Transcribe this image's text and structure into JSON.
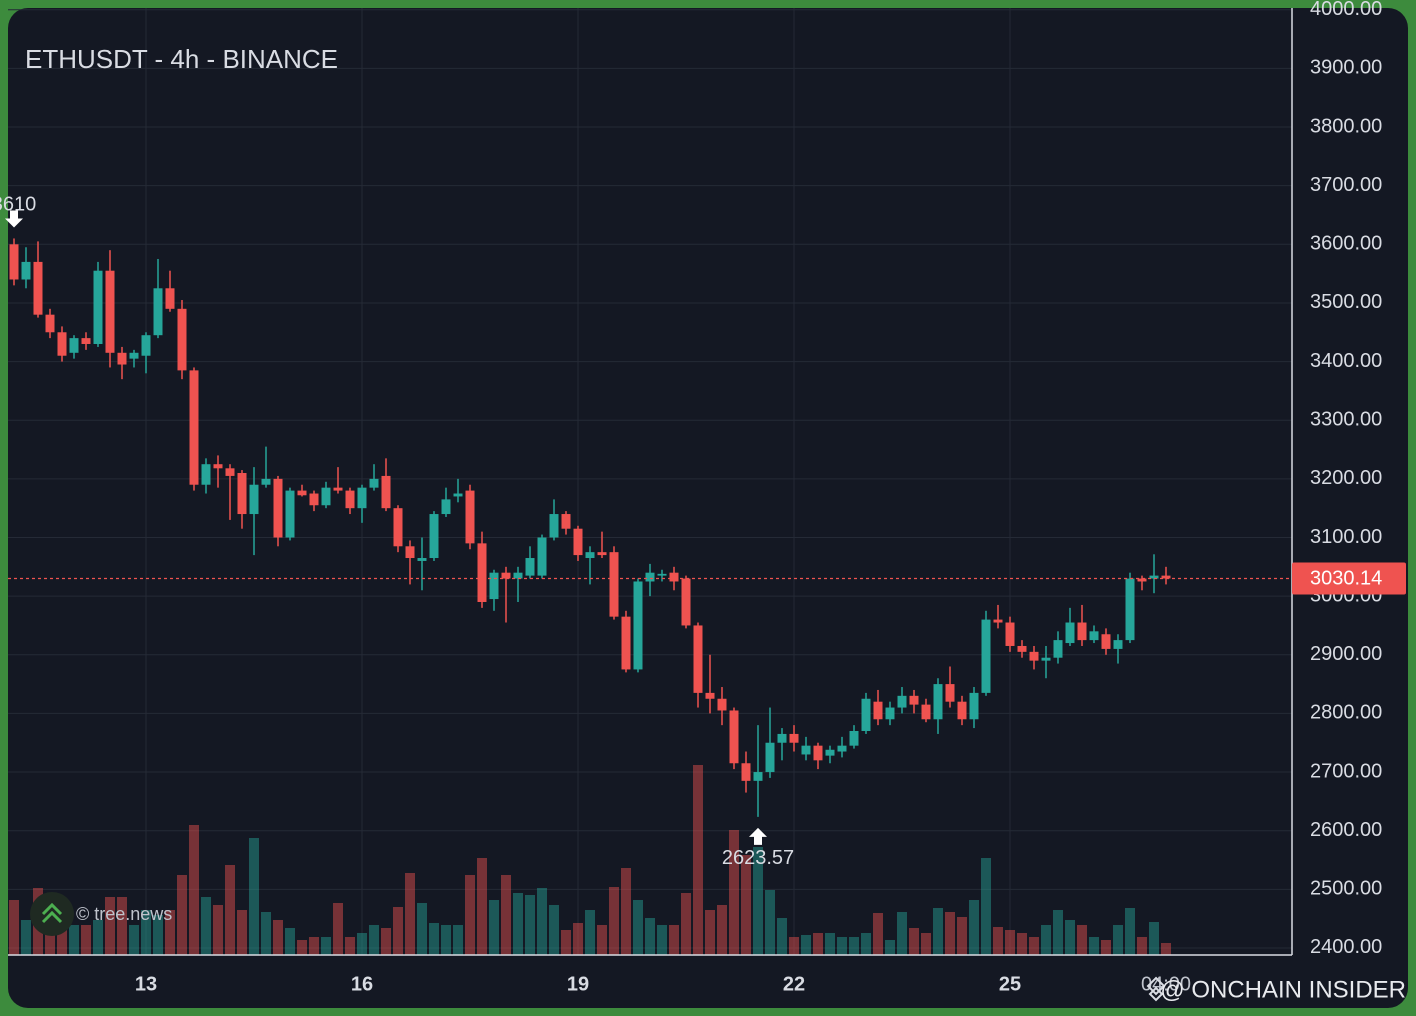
{
  "chart_data": {
    "type": "candlestick",
    "title": "ETHUSDT - 4h - BINANCE",
    "up_color": "#26a69a",
    "down_color": "#ef5350",
    "x": [
      11.1667,
      11.3333,
      11.5,
      11.6667,
      11.8333,
      12,
      12.1667,
      12.3333,
      12.5,
      12.6667,
      12.8333,
      13,
      13.1667,
      13.3333,
      13.5,
      13.6667,
      13.8333,
      14,
      14.1667,
      14.3333,
      14.5,
      14.6667,
      14.8333,
      15,
      15.1667,
      15.3333,
      15.5,
      15.6667,
      15.8333,
      16,
      16.1667,
      16.3333,
      16.5,
      16.6667,
      16.8333,
      17,
      17.1667,
      17.3333,
      17.5,
      17.6667,
      17.8333,
      18,
      18.1667,
      18.3333,
      18.5,
      18.6667,
      18.8333,
      19,
      19.1667,
      19.3333,
      19.5,
      19.6667,
      19.8333,
      20,
      20.1667,
      20.3333,
      20.5,
      20.6667,
      20.8333,
      21,
      21.1667,
      21.3333,
      21.5,
      21.6667,
      21.8333,
      22,
      22.1667,
      22.3333,
      22.5,
      22.6667,
      22.8333,
      23,
      23.1667,
      23.3333,
      23.5,
      23.6667,
      23.8333,
      24,
      24.1667,
      24.3333,
      24.5,
      24.6667,
      24.8333,
      25,
      25.1667,
      25.3333,
      25.5,
      25.6667,
      25.8333,
      26,
      26.1667,
      26.3333,
      26.5,
      26.6667,
      26.8333,
      27,
      27.1667
    ],
    "open": [
      3600,
      3540,
      3570,
      3480,
      3450,
      3415,
      3440,
      3430,
      3555,
      3415,
      3405,
      3410,
      3445,
      3525,
      3490,
      3385,
      3190,
      3225,
      3218,
      3210,
      3140,
      3190,
      3200,
      3100,
      3180,
      3175,
      3155,
      3185,
      3180,
      3150,
      3185,
      3205,
      3150,
      3085,
      3060,
      3065,
      3140,
      3170,
      3180,
      3090,
      2995,
      3040,
      3030,
      3035,
      3035,
      3100,
      3140,
      3115,
      3065,
      3075,
      3075,
      2965,
      2875,
      3025,
      3035,
      3040,
      3030,
      2950,
      2835,
      2825,
      2805,
      2715,
      2685,
      2700,
      2750,
      2765,
      2730,
      2745,
      2728,
      2735,
      2745,
      2770,
      2820,
      2790,
      2810,
      2830,
      2815,
      2790,
      2850,
      2820,
      2790,
      2835,
      2960,
      2955,
      2915,
      2905,
      2890,
      2895,
      2920,
      2955,
      2925,
      2935,
      2910,
      2925,
      3030,
      3030,
      3035
    ],
    "high": [
      3610,
      3595,
      3605,
      3490,
      3460,
      3445,
      3450,
      3570,
      3590,
      3425,
      3420,
      3450,
      3575,
      3555,
      3505,
      3390,
      3235,
      3240,
      3225,
      3215,
      3220,
      3255,
      3205,
      3185,
      3190,
      3180,
      3195,
      3220,
      3185,
      3190,
      3225,
      3235,
      3155,
      3095,
      3100,
      3145,
      3185,
      3200,
      3190,
      3110,
      3045,
      3050,
      3050,
      3085,
      3105,
      3165,
      3145,
      3120,
      3085,
      3110,
      3085,
      2975,
      3030,
      3055,
      3045,
      3050,
      3035,
      2955,
      2900,
      2845,
      2810,
      2735,
      2780,
      2810,
      2775,
      2780,
      2760,
      2750,
      2745,
      2760,
      2780,
      2835,
      2840,
      2820,
      2845,
      2840,
      2825,
      2860,
      2880,
      2830,
      2845,
      2975,
      2985,
      2965,
      2925,
      2915,
      2915,
      2940,
      2980,
      2985,
      2950,
      2945,
      2935,
      3040,
      3035,
      3071.37,
      3050
    ],
    "low": [
      3530,
      3525,
      3475,
      3440,
      3400,
      3405,
      3420,
      3425,
      3390,
      3370,
      3390,
      3380,
      3440,
      3485,
      3370,
      3180,
      3175,
      3185,
      3130,
      3115,
      3070,
      3185,
      3085,
      3095,
      3170,
      3145,
      3150,
      3175,
      3140,
      3125,
      3180,
      3145,
      3075,
      3020,
      3010,
      3060,
      3135,
      3160,
      3080,
      2980,
      2975,
      2955,
      2990,
      3030,
      3030,
      3095,
      3105,
      3060,
      3020,
      3065,
      2960,
      2870,
      2870,
      3000,
      3025,
      3010,
      2945,
      2810,
      2800,
      2780,
      2705,
      2665,
      2623.57,
      2690,
      2720,
      2735,
      2720,
      2705,
      2715,
      2725,
      2740,
      2765,
      2780,
      2780,
      2800,
      2800,
      2785,
      2765,
      2810,
      2780,
      2775,
      2830,
      2945,
      2905,
      2895,
      2875,
      2860,
      2885,
      2915,
      2915,
      2920,
      2900,
      2885,
      2920,
      3010,
      3005,
      3020
    ],
    "close": [
      3540,
      3570,
      3480,
      3450,
      3410,
      3440,
      3430,
      3555,
      3415,
      3395,
      3415,
      3445,
      3525,
      3490,
      3385,
      3190,
      3225,
      3218,
      3205,
      3140,
      3190,
      3200,
      3100,
      3180,
      3172,
      3155,
      3185,
      3180,
      3150,
      3185,
      3200,
      3150,
      3085,
      3065,
      3065,
      3140,
      3165,
      3175,
      3090,
      2990,
      3040,
      3030,
      3040,
      3065,
      3100,
      3140,
      3115,
      3070,
      3075,
      3070,
      2965,
      2875,
      3025,
      3040,
      3038,
      3025,
      2950,
      2835,
      2825,
      2805,
      2715,
      2685,
      2700,
      2750,
      2765,
      2750,
      2745,
      2720,
      2738,
      2745,
      2770,
      2825,
      2790,
      2810,
      2830,
      2815,
      2790,
      2850,
      2820,
      2790,
      2835,
      2960,
      2955,
      2915,
      2905,
      2890,
      2895,
      2925,
      2955,
      2925,
      2940,
      2910,
      2925,
      3030,
      3025,
      3035,
      3030.14
    ],
    "volume": [
      55,
      35,
      67,
      45,
      35,
      30,
      30,
      35,
      58,
      58,
      30,
      45,
      40,
      45,
      80,
      130,
      58,
      50,
      90,
      45,
      117,
      43,
      35,
      27,
      15,
      18,
      18,
      52,
      18,
      22,
      30,
      27,
      48,
      82,
      52,
      32,
      30,
      30,
      80,
      97,
      55,
      80,
      62,
      60,
      67,
      50,
      25,
      32,
      45,
      30,
      68,
      87,
      55,
      37,
      30,
      30,
      62,
      190,
      45,
      50,
      125,
      100,
      108,
      65,
      37,
      18,
      20,
      22,
      22,
      18,
      18,
      22,
      42,
      15,
      43,
      27,
      22,
      47,
      43,
      38,
      55,
      97,
      28,
      25,
      22,
      18,
      30,
      45,
      35,
      30,
      18,
      15,
      30,
      47,
      18,
      33,
      12
    ],
    "xlim": [
      11.0833,
      28.9167
    ],
    "xticks": [
      13,
      16,
      19,
      22,
      25
    ],
    "ylim": [
      2388,
      4003
    ],
    "yticks": [
      {
        "value": 2400,
        "label": "2400.00"
      },
      {
        "value": 2500,
        "label": "2500.00"
      },
      {
        "value": 2600,
        "label": "2600.00"
      },
      {
        "value": 2700,
        "label": "2700.00"
      },
      {
        "value": 2800,
        "label": "2800.00"
      },
      {
        "value": 2900,
        "label": "2900.00"
      },
      {
        "value": 3000,
        "label": "3000.00"
      },
      {
        "value": 3100,
        "label": "3100.00"
      },
      {
        "value": 3200,
        "label": "3200.00"
      },
      {
        "value": 3300,
        "label": "3300.00"
      },
      {
        "value": 3400,
        "label": "3400.00"
      },
      {
        "value": 3500,
        "label": "3500.00"
      },
      {
        "value": 3600,
        "label": "3600.00"
      },
      {
        "value": 3700,
        "label": "3700.00"
      },
      {
        "value": 3800,
        "label": "3800.00"
      },
      {
        "value": 3900,
        "label": "3900.00"
      },
      {
        "value": 4000,
        "label": "4000.00"
      }
    ],
    "grid": true,
    "time_label": "04:00",
    "source_label": "© tree.news",
    "watermark": "@ ONCHAIN INSIDER"
  }
}
